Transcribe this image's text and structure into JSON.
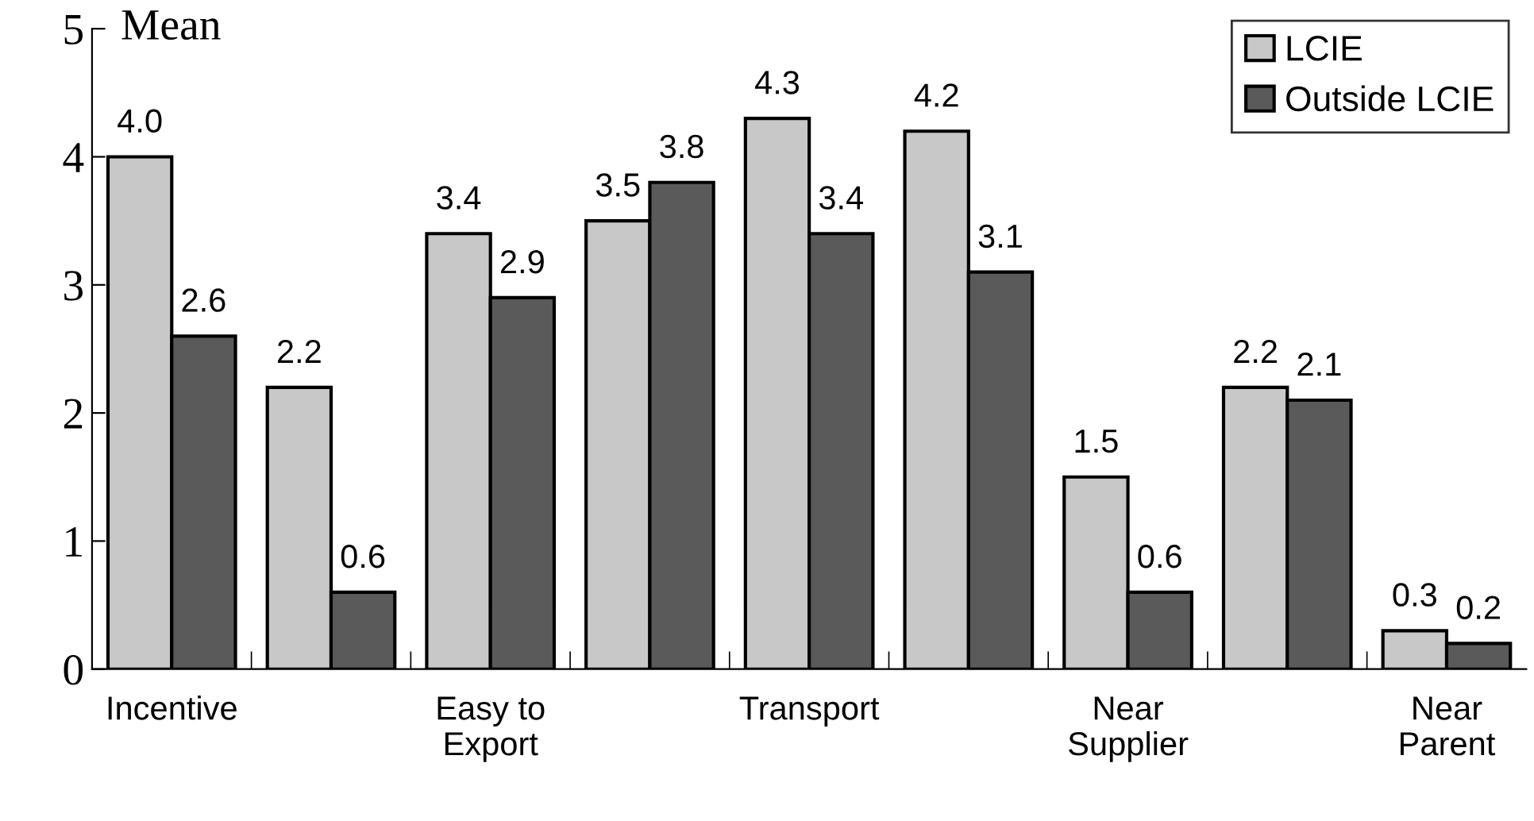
{
  "chart_data": {
    "type": "bar",
    "ylabel": "Mean",
    "categories": [
      "Incentive",
      null,
      "Easy to\nExport",
      null,
      "Transport",
      null,
      "Near\nSupplier",
      null,
      "Near\nParent"
    ],
    "series": [
      {
        "name": "LCIE",
        "color": "#c8c8c8",
        "values": [
          4.0,
          2.2,
          3.4,
          3.5,
          4.3,
          4.2,
          1.5,
          2.2,
          0.3
        ],
        "value_labels": [
          "4.0",
          "2.2",
          "3.4",
          "3.5",
          "4.3",
          "4.2",
          "1.5",
          "2.2",
          "0.3"
        ]
      },
      {
        "name": "Outside LCIE",
        "color": "#5a5a5a",
        "values": [
          2.6,
          0.6,
          2.9,
          3.8,
          3.4,
          3.1,
          0.6,
          2.1,
          0.2
        ],
        "value_labels": [
          "2.6",
          "0.6",
          "2.9",
          "3.8",
          "3.4",
          "3.1",
          "0.6",
          "2.1",
          "0.2"
        ]
      }
    ],
    "ylim": [
      0,
      5
    ],
    "yticks": [
      0,
      1,
      2,
      3,
      4,
      5
    ],
    "legend": "top right",
    "grid": false
  }
}
